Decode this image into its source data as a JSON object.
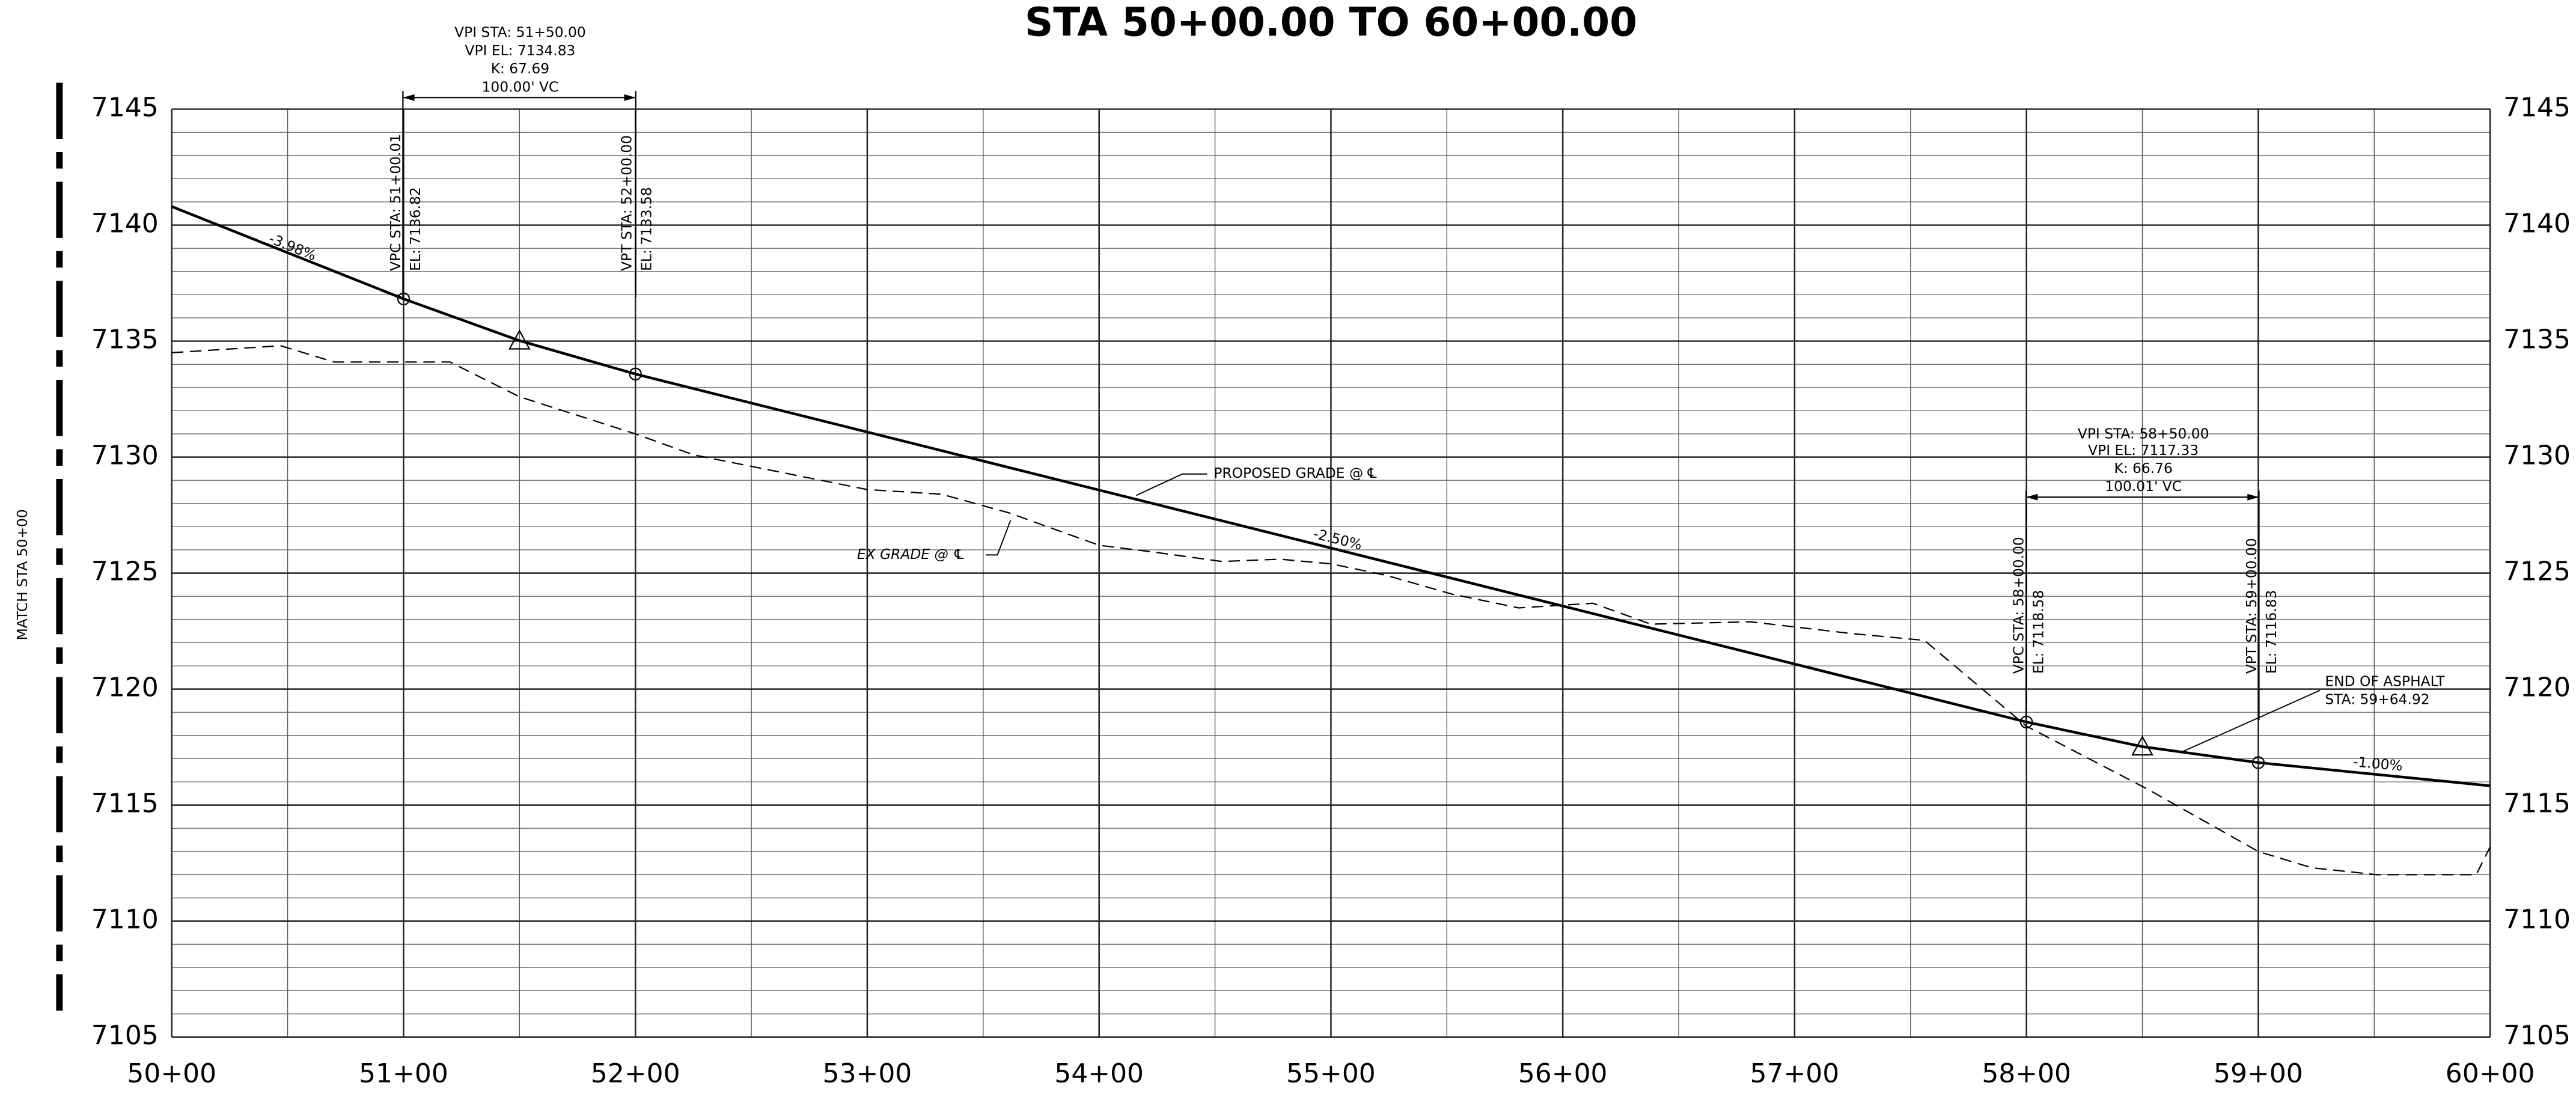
{
  "chart_data": {
    "type": "line",
    "title": "STA 50+00.00 TO 60+00.00",
    "xlim": [
      5000,
      6000
    ],
    "xticks": [
      {
        "value": 5000,
        "label": "50+00"
      },
      {
        "value": 5100,
        "label": "51+00"
      },
      {
        "value": 5200,
        "label": "52+00"
      },
      {
        "value": 5300,
        "label": "53+00"
      },
      {
        "value": 5400,
        "label": "54+00"
      },
      {
        "value": 5500,
        "label": "55+00"
      },
      {
        "value": 5600,
        "label": "56+00"
      },
      {
        "value": 5700,
        "label": "57+00"
      },
      {
        "value": 5800,
        "label": "58+00"
      },
      {
        "value": 5900,
        "label": "59+00"
      },
      {
        "value": 6000,
        "label": "60+00"
      }
    ],
    "ylim": [
      7105,
      7145
    ],
    "yticks": [
      7105,
      7110,
      7115,
      7120,
      7125,
      7130,
      7135,
      7140,
      7145
    ],
    "grid": true,
    "series": [
      {
        "name": "PROPOSED GRADE @ ℄",
        "color": "#000000",
        "dashed": false,
        "x": [
          5000,
          5100.01,
          5150,
          5200,
          5800,
          5850,
          5900,
          6000
        ],
        "values": [
          7140.8,
          7136.82,
          7135.02,
          7133.58,
          7118.58,
          7117.52,
          7116.83,
          7115.83
        ]
      },
      {
        "name": "EX GRADE @ ℄",
        "color": "#000000",
        "dashed": true,
        "x": [
          5000,
          5047,
          5070,
          5120,
          5150,
          5200,
          5225,
          5260,
          5300,
          5332,
          5361,
          5400,
          5424,
          5453,
          5478,
          5500,
          5524,
          5552,
          5581,
          5613,
          5638,
          5681,
          5724,
          5756,
          5800,
          5852,
          5900,
          5923,
          5951,
          5994,
          6000
        ],
        "values": [
          7134.5,
          7134.8,
          7134.1,
          7134.1,
          7132.6,
          7131.0,
          7130.1,
          7129.4,
          7128.6,
          7128.4,
          7127.6,
          7126.2,
          7125.9,
          7125.5,
          7125.6,
          7125.4,
          7124.9,
          7124.1,
          7123.5,
          7123.7,
          7122.8,
          7122.9,
          7122.4,
          7122.1,
          7118.4,
          7115.7,
          7113.0,
          7112.3,
          7112.0,
          7112.0,
          7113.2
        ]
      }
    ],
    "annotations": [
      "VPI STA:  51+50.00",
      "VPI EL:  7134.83",
      "K:  67.69",
      "100.00' VC",
      "VPC STA:  51+00.01",
      "EL:  7136.82",
      "VPT STA:  52+00.00",
      "EL:  7133.58",
      "-3.98%",
      "-2.50%",
      "VPI STA:  58+50.00",
      "VPI EL:  7117.33",
      "K:  66.76",
      "100.01' VC",
      "VPC STA:  58+00.00",
      "EL:  7118.58",
      "VPT STA:  59+00.00",
      "EL:  7116.83",
      "END OF ASPHALT",
      "STA:  59+64.92",
      "-1.00%",
      "MATCH  STA  50+00"
    ]
  }
}
